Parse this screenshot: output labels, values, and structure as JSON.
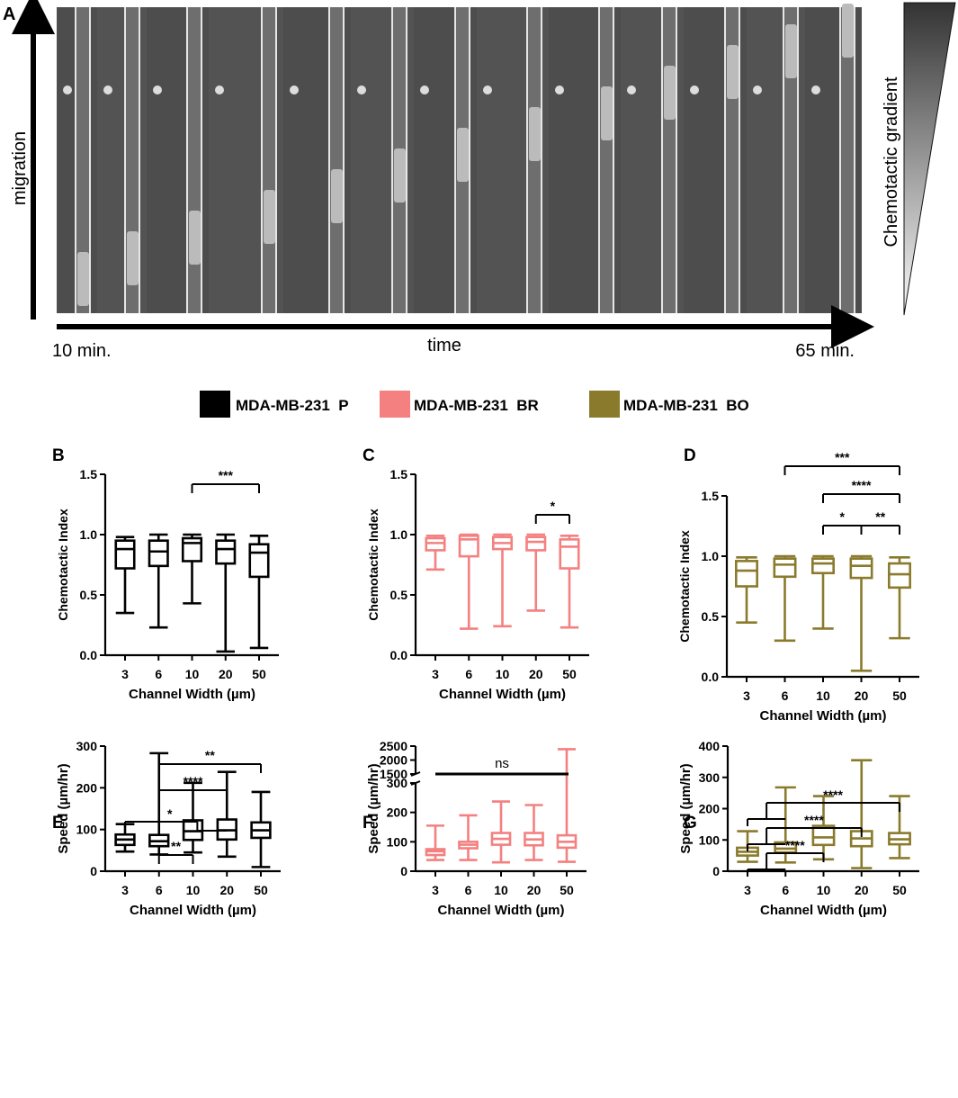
{
  "panel_a": {
    "label": "A",
    "y_axis_label": "migration",
    "x_axis_label": "time",
    "time_start": "10 min.",
    "time_end": "65 min.",
    "gradient_label": "Chemotactic gradient"
  },
  "legend": [
    {
      "label": "MDA-MB-231  P",
      "color": "#000000"
    },
    {
      "label": "MDA-MB-231  BR",
      "color": "#f48080"
    },
    {
      "label": "MDA-MB-231  BO",
      "color": "#8a7a2c"
    }
  ],
  "chart_data": [
    {
      "panel": "B",
      "type": "box",
      "series": "MDA-MB-231 P",
      "color": "#000000",
      "xlabel": "Channel Width (µm)",
      "ylabel": "Chemotactic Index",
      "categories": [
        "3",
        "6",
        "10",
        "20",
        "50"
      ],
      "ylim": [
        0,
        1.5
      ],
      "yticks": [
        "0.0",
        "0.5",
        "1.0",
        "1.5"
      ],
      "boxes": [
        {
          "min": 0.35,
          "q1": 0.72,
          "median": 0.88,
          "q3": 0.95,
          "max": 0.98
        },
        {
          "min": 0.23,
          "q1": 0.74,
          "median": 0.86,
          "q3": 0.95,
          "max": 1.0
        },
        {
          "min": 0.43,
          "q1": 0.78,
          "median": 0.93,
          "q3": 0.97,
          "max": 1.0
        },
        {
          "min": 0.03,
          "q1": 0.76,
          "median": 0.88,
          "q3": 0.95,
          "max": 1.0
        },
        {
          "min": 0.06,
          "q1": 0.65,
          "median": 0.85,
          "q3": 0.92,
          "max": 0.99
        }
      ],
      "annotations": [
        {
          "from": 2,
          "to": 4,
          "text": "***"
        }
      ]
    },
    {
      "panel": "C",
      "type": "box",
      "series": "MDA-MB-231 BR",
      "color": "#f48080",
      "xlabel": "Channel Width (µm)",
      "ylabel": "Chemotactic Index",
      "categories": [
        "3",
        "6",
        "10",
        "20",
        "50"
      ],
      "ylim": [
        0,
        1.5
      ],
      "yticks": [
        "0.0",
        "0.5",
        "1.0",
        "1.5"
      ],
      "boxes": [
        {
          "min": 0.71,
          "q1": 0.87,
          "median": 0.93,
          "q3": 0.97,
          "max": 0.99
        },
        {
          "min": 0.22,
          "q1": 0.82,
          "median": 0.96,
          "q3": 0.99,
          "max": 1.0
        },
        {
          "min": 0.24,
          "q1": 0.88,
          "median": 0.93,
          "q3": 0.98,
          "max": 1.0
        },
        {
          "min": 0.37,
          "q1": 0.87,
          "median": 0.94,
          "q3": 0.98,
          "max": 1.0
        },
        {
          "min": 0.23,
          "q1": 0.72,
          "median": 0.9,
          "q3": 0.96,
          "max": 0.99
        }
      ],
      "annotations": [
        {
          "from": 3,
          "to": 4,
          "text": "*"
        }
      ]
    },
    {
      "panel": "D",
      "type": "box",
      "series": "MDA-MB-231 BO",
      "color": "#8a7a2c",
      "xlabel": "Channel Width (µm)",
      "ylabel": "Chemotactic Index",
      "categories": [
        "3",
        "6",
        "10",
        "20",
        "50"
      ],
      "ylim": [
        0,
        1.5
      ],
      "yticks": [
        "0.0",
        "0.5",
        "1.0",
        "1.5"
      ],
      "boxes": [
        {
          "min": 0.45,
          "q1": 0.75,
          "median": 0.88,
          "q3": 0.96,
          "max": 0.99
        },
        {
          "min": 0.3,
          "q1": 0.83,
          "median": 0.93,
          "q3": 0.98,
          "max": 1.0
        },
        {
          "min": 0.4,
          "q1": 0.86,
          "median": 0.94,
          "q3": 0.98,
          "max": 1.0
        },
        {
          "min": 0.05,
          "q1": 0.82,
          "median": 0.92,
          "q3": 0.98,
          "max": 1.0
        },
        {
          "min": 0.32,
          "q1": 0.74,
          "median": 0.85,
          "q3": 0.94,
          "max": 0.99
        }
      ],
      "annotations": [
        {
          "from": 1,
          "to": 4,
          "text": "***"
        },
        {
          "from": 2,
          "to": 4,
          "text": "****"
        },
        {
          "from": 2,
          "to": 3,
          "text": "*"
        },
        {
          "from": 3,
          "to": 4,
          "text": "**"
        }
      ]
    },
    {
      "panel": "E",
      "type": "box",
      "series": "MDA-MB-231 P",
      "color": "#000000",
      "xlabel": "Channel Width (µm)",
      "ylabel": "Speed (µm/hr)",
      "categories": [
        "3",
        "6",
        "10",
        "20",
        "50"
      ],
      "ylim": [
        0,
        300
      ],
      "yticks": [
        "0",
        "100",
        "200",
        "300"
      ],
      "boxes": [
        {
          "min": 47,
          "q1": 63,
          "median": 76,
          "q3": 88,
          "max": 113
        },
        {
          "min": 40,
          "q1": 60,
          "median": 72,
          "q3": 87,
          "max": 283
        },
        {
          "min": 45,
          "q1": 75,
          "median": 96,
          "q3": 122,
          "max": 212
        },
        {
          "min": 35,
          "q1": 76,
          "median": 98,
          "q3": 124,
          "max": 238
        },
        {
          "min": 10,
          "q1": 80,
          "median": 98,
          "q3": 117,
          "max": 190
        }
      ],
      "annotations": [
        {
          "from": 1,
          "to": 4,
          "text": "**"
        },
        {
          "from": 1,
          "to": 3,
          "text": "****"
        },
        {
          "text": "*"
        },
        {
          "from": 1,
          "to": 2,
          "text": "**"
        }
      ]
    },
    {
      "panel": "F",
      "type": "box",
      "series": "MDA-MB-231 BR",
      "color": "#f48080",
      "xlabel": "Channel Width (µm)",
      "ylabel": "Speed (µm/hr)",
      "categories": [
        "3",
        "6",
        "10",
        "20",
        "50"
      ],
      "ylim": [
        0,
        2500
      ],
      "axis_break": [
        300,
        1500
      ],
      "yticks": [
        "0",
        "100",
        "200",
        "300",
        "1500",
        "2000",
        "2500"
      ],
      "boxes": [
        {
          "min": 38,
          "q1": 55,
          "median": 68,
          "q3": 75,
          "max": 155
        },
        {
          "min": 38,
          "q1": 78,
          "median": 90,
          "q3": 100,
          "max": 190
        },
        {
          "min": 30,
          "q1": 90,
          "median": 110,
          "q3": 130,
          "max": 237
        },
        {
          "min": 38,
          "q1": 88,
          "median": 108,
          "q3": 130,
          "max": 225
        },
        {
          "min": 32,
          "q1": 80,
          "median": 100,
          "q3": 122,
          "max": 2390
        }
      ],
      "annotations": [
        {
          "from": 0,
          "to": 4,
          "text": "ns"
        }
      ]
    },
    {
      "panel": "G",
      "type": "box",
      "series": "MDA-MB-231 BO",
      "color": "#8a7a2c",
      "xlabel": "Channel Width (µm)",
      "ylabel": "Speed (µm/hr)",
      "categories": [
        "3",
        "6",
        "10",
        "20",
        "50"
      ],
      "ylim": [
        0,
        400
      ],
      "yticks": [
        "0",
        "100",
        "200",
        "300",
        "400"
      ],
      "boxes": [
        {
          "min": 30,
          "q1": 50,
          "median": 62,
          "q3": 75,
          "max": 128
        },
        {
          "min": 28,
          "q1": 60,
          "median": 72,
          "q3": 92,
          "max": 268
        },
        {
          "min": 38,
          "q1": 84,
          "median": 108,
          "q3": 145,
          "max": 240
        },
        {
          "min": 10,
          "q1": 80,
          "median": 105,
          "q3": 128,
          "max": 355
        },
        {
          "min": 42,
          "q1": 86,
          "median": 102,
          "q3": 122,
          "max": 240
        }
      ],
      "annotations": [
        {
          "from": 0,
          "to": 4,
          "text": "****"
        },
        {
          "from": 0,
          "to": 3,
          "text": "****"
        },
        {
          "from": 0,
          "to": 2,
          "text": "****"
        }
      ]
    }
  ]
}
